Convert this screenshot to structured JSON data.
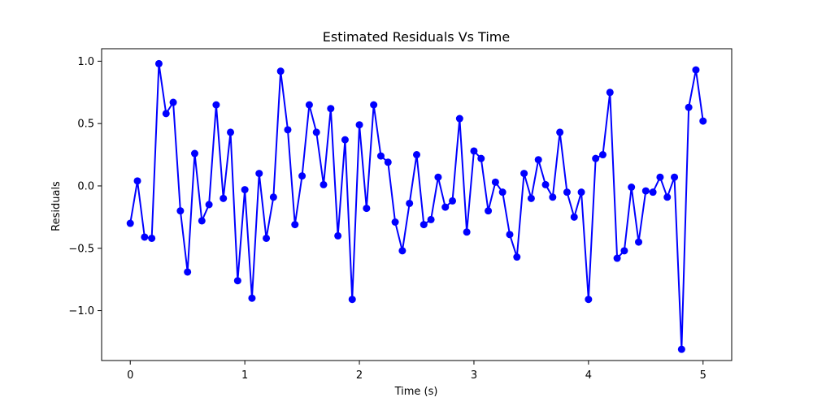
{
  "chart_data": {
    "type": "line",
    "title": "Estimated Residuals Vs Time",
    "xlabel": "Time (s)",
    "ylabel": "Residuals",
    "xlim": [
      -0.25,
      5.25
    ],
    "ylim": [
      -1.4,
      1.1
    ],
    "xticks": [
      0,
      1,
      2,
      3,
      4,
      5
    ],
    "xtick_labels": [
      "0",
      "1",
      "2",
      "3",
      "4",
      "5"
    ],
    "yticks": [
      1.0,
      0.5,
      0.0,
      -0.5,
      -1.0
    ],
    "ytick_labels": [
      "1.0",
      "0.5",
      "0.0",
      "−0.5",
      "−1.0"
    ],
    "grid": false,
    "series": [
      {
        "color": "#0000ff",
        "marker": "circle",
        "x": [
          0.0,
          0.0625,
          0.125,
          0.1875,
          0.25,
          0.3125,
          0.375,
          0.4375,
          0.5,
          0.5625,
          0.625,
          0.6875,
          0.75,
          0.8125,
          0.875,
          0.9375,
          1.0,
          1.0625,
          1.125,
          1.1875,
          1.25,
          1.3125,
          1.375,
          1.4375,
          1.5,
          1.5625,
          1.625,
          1.6875,
          1.75,
          1.8125,
          1.875,
          1.9375,
          2.0,
          2.0625,
          2.125,
          2.1875,
          2.25,
          2.3125,
          2.375,
          2.4375,
          2.5,
          2.5625,
          2.625,
          2.6875,
          2.75,
          2.8125,
          2.875,
          2.9375,
          3.0,
          3.0625,
          3.125,
          3.1875,
          3.25,
          3.3125,
          3.375,
          3.4375,
          3.5,
          3.5625,
          3.625,
          3.6875,
          3.75,
          3.8125,
          3.875,
          3.9375,
          4.0,
          4.0625,
          4.125,
          4.1875,
          4.25,
          4.3125,
          4.375,
          4.4375,
          4.5,
          4.5625,
          4.625,
          4.6875,
          4.75,
          4.8125,
          4.875,
          4.9375,
          5.0
        ],
        "y": [
          -0.3,
          0.04,
          -0.41,
          -0.42,
          0.98,
          0.58,
          0.67,
          -0.2,
          -0.69,
          0.26,
          -0.28,
          -0.15,
          0.65,
          -0.1,
          0.43,
          -0.76,
          -0.03,
          -0.9,
          0.1,
          -0.42,
          -0.09,
          0.92,
          0.45,
          -0.31,
          0.08,
          0.65,
          0.43,
          0.01,
          0.62,
          -0.4,
          0.37,
          -0.91,
          0.49,
          -0.18,
          0.65,
          0.24,
          0.19,
          -0.29,
          -0.52,
          -0.14,
          0.25,
          -0.31,
          -0.27,
          0.07,
          -0.17,
          -0.12,
          0.54,
          -0.37,
          0.28,
          0.22,
          -0.2,
          0.03,
          -0.05,
          -0.39,
          -0.57,
          0.1,
          -0.1,
          0.21,
          0.01,
          -0.09,
          0.43,
          -0.05,
          -0.25,
          -0.05,
          -0.91,
          0.22,
          0.25,
          0.75,
          -0.58,
          -0.52,
          -0.01,
          -0.45,
          -0.04,
          -0.05,
          0.07,
          -0.09,
          0.07,
          -1.31,
          0.63,
          0.93,
          0.52
        ]
      }
    ]
  }
}
